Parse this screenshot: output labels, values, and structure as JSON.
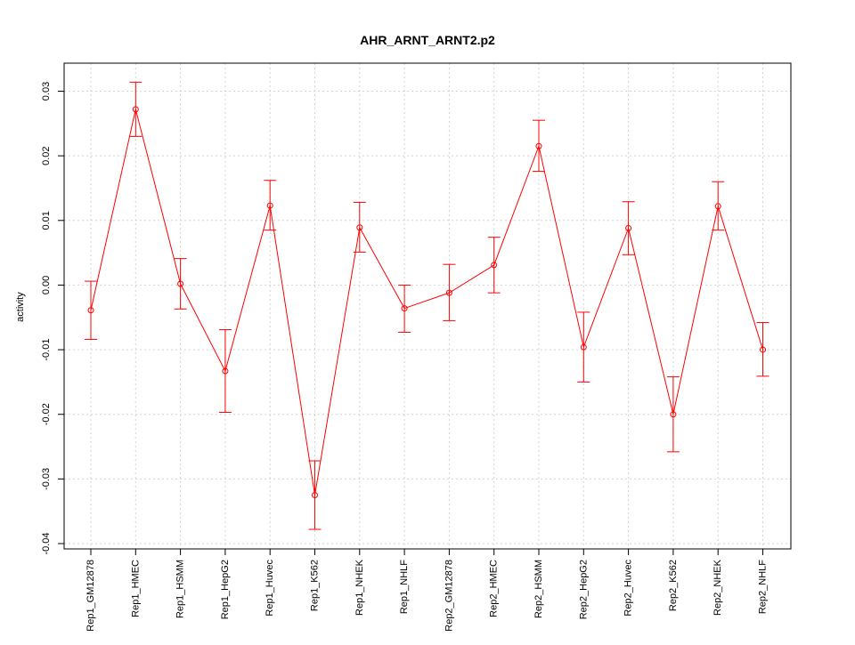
{
  "chart_data": {
    "type": "line",
    "title": "AHR_ARNT_ARNT2.p2",
    "xlabel": "",
    "ylabel": "activity",
    "ylim": [
      -0.04,
      0.03
    ],
    "yticks": [
      -0.04,
      -0.03,
      -0.02,
      -0.01,
      0.0,
      0.01,
      0.02,
      0.03
    ],
    "ytick_labels": [
      "-0.04",
      "-0.03",
      "-0.02",
      "-0.01",
      "0.00",
      "0.01",
      "0.02",
      "0.03"
    ],
    "grid": true,
    "color": "#ff0000",
    "categories": [
      "Rep1_GM12878",
      "Rep1_HMEC",
      "Rep1_HSMM",
      "Rep1_HepG2",
      "Rep1_Huvec",
      "Rep1_K562",
      "Rep1_NHEK",
      "Rep1_NHLF",
      "Rep2_GM12878",
      "Rep2_HMEC",
      "Rep2_HSMM",
      "Rep2_HepG2",
      "Rep2_Huvec",
      "Rep2_K562",
      "Rep2_NHEK",
      "Rep2_NHLF"
    ],
    "series": [
      {
        "values": [
          -0.0039,
          0.0272,
          0.0002,
          -0.0133,
          0.0123,
          -0.0325,
          0.0089,
          -0.0036,
          -0.0012,
          0.0031,
          0.0215,
          -0.0096,
          0.0088,
          -0.02,
          0.0122,
          -0.01
        ],
        "upper": [
          0.0006,
          0.0314,
          0.0041,
          -0.0069,
          0.0162,
          -0.0272,
          0.0128,
          0.0,
          0.0032,
          0.0074,
          0.0255,
          -0.0042,
          0.0129,
          -0.0142,
          0.016,
          -0.0058
        ],
        "lower": [
          -0.0084,
          0.023,
          -0.0037,
          -0.0197,
          0.0085,
          -0.0378,
          0.0051,
          -0.0073,
          -0.0055,
          -0.0012,
          0.0176,
          -0.015,
          0.0047,
          -0.0258,
          0.0085,
          -0.0141
        ]
      }
    ]
  }
}
